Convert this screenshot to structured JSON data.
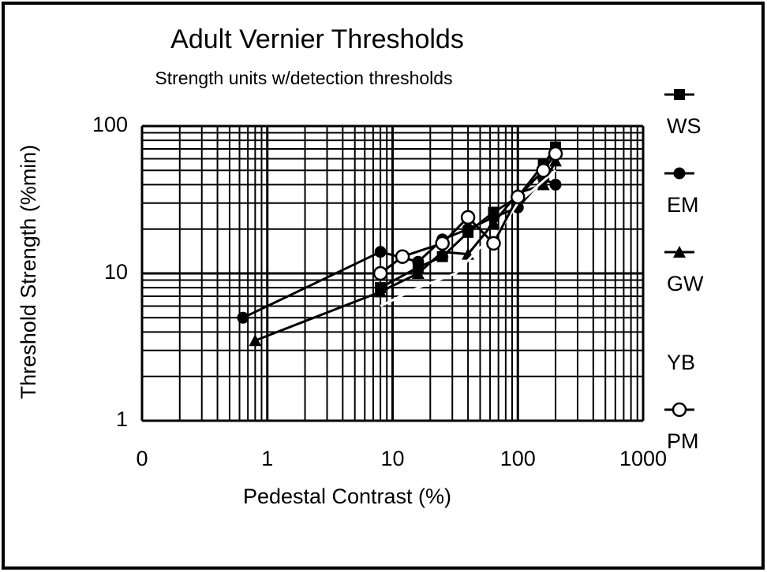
{
  "chart_data": {
    "type": "line",
    "title": "Adult Vernier Thresholds",
    "subtitle": "Strength units w/detection thresholds",
    "x_label": "Pedestal Contrast (%)",
    "y_label": "Threshold Strength (%min)",
    "xscale": "log",
    "yscale": "log",
    "grid": true,
    "minor_grid": true,
    "legend": "right",
    "xlim": [
      0.1,
      1000
    ],
    "ylim": [
      1,
      100
    ],
    "xticks": [
      {
        "value": 0.1,
        "label": "0"
      },
      1,
      10,
      100,
      1000
    ],
    "yticks": [
      1,
      10,
      100
    ],
    "series": [
      {
        "name": "WS",
        "color": "#000000",
        "marker": "square",
        "x": [
          8,
          16,
          25,
          40,
          64,
          100,
          160,
          200
        ],
        "values": [
          8,
          11,
          13,
          19,
          26,
          33,
          55,
          72
        ]
      },
      {
        "name": "EM",
        "color": "#000000",
        "marker": "circle",
        "x": [
          0.64,
          8,
          16,
          25,
          40,
          64,
          100,
          160,
          200
        ],
        "values": [
          5,
          14,
          12,
          17,
          20,
          24,
          28,
          44,
          40
        ]
      },
      {
        "name": "GW",
        "color": "#000000",
        "marker": "triangle",
        "x": [
          0.8,
          8,
          16,
          25,
          40,
          64,
          100,
          160,
          200
        ],
        "values": [
          3.5,
          7.5,
          10,
          14,
          13.5,
          22,
          35,
          40,
          58
        ]
      },
      {
        "name": "YB",
        "color": "#ffffff",
        "marker": "none",
        "x": [
          8,
          16,
          32,
          50,
          64,
          100,
          200
        ],
        "values": [
          6,
          8,
          10,
          15,
          17,
          30,
          50
        ]
      },
      {
        "name": "PM",
        "color": "#000000",
        "marker": "open-circle",
        "x": [
          8,
          12,
          25,
          40,
          64,
          100,
          160,
          200
        ],
        "values": [
          10,
          13,
          16,
          24,
          16,
          33,
          50,
          65
        ]
      }
    ]
  }
}
